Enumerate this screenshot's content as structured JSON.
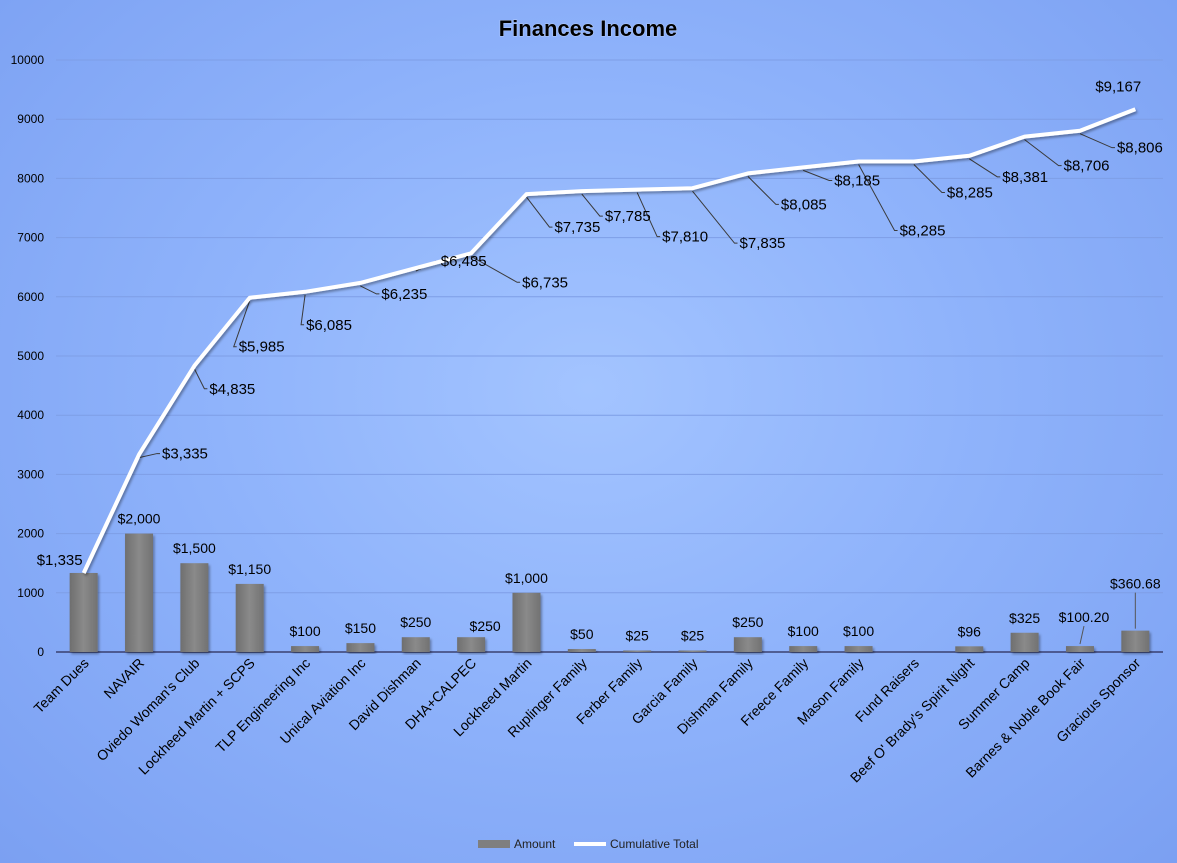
{
  "chart_data": {
    "type": "bar",
    "title": "Finances Income",
    "xlabel": "",
    "ylabel": "",
    "ylim": [
      0,
      10000
    ],
    "yticks": [
      0,
      1000,
      2000,
      3000,
      4000,
      5000,
      6000,
      7000,
      8000,
      9000,
      10000
    ],
    "grid": true,
    "legend_position": "bottom",
    "categories": [
      "Team Dues",
      "NAVAIR",
      "Oviedo Woman's Club",
      "Lockheed Martin + SCPS",
      "TLP Engineering Inc",
      "Unical Aviation Inc",
      "David Dishman",
      "DHA+CALPEC",
      "Lockheed Martin",
      "Ruplinger Family",
      "Ferber Family",
      "Garcia Family",
      "Dishman Family",
      "Freece Family",
      "Mason Family",
      "Fund Raisers",
      "Beef O' Brady's Spirit Night",
      "Summer Camp",
      "Barnes & Noble Book Fair",
      "Gracious Sponsor"
    ],
    "series": [
      {
        "name": "Amount",
        "type": "bar",
        "color": "#7f7f7f",
        "values": [
          1335,
          2000,
          1500,
          1150,
          100,
          150,
          250,
          250,
          1000,
          50,
          25,
          25,
          250,
          100,
          100,
          null,
          96,
          325,
          100.2,
          360.68
        ],
        "labels": [
          "",
          "$2,000",
          "$1,500",
          "$1,150",
          "$100",
          "$150",
          "$250",
          "$250",
          "$1,000",
          "$50",
          "$25",
          "$25",
          "$250",
          "$100",
          "$100",
          "",
          "$96",
          "$325",
          "$100.20",
          "$360.68"
        ]
      },
      {
        "name": "Cumulative Total",
        "type": "line",
        "color": "#ffffff",
        "values": [
          1335,
          3335,
          4835,
          5985,
          6085,
          6235,
          6485,
          6735,
          7735,
          7785,
          7810,
          7835,
          8085,
          8185,
          8285,
          8285,
          8381,
          8706,
          8806,
          9167
        ],
        "labels": [
          "$1,335",
          "$3,335",
          "$4,835",
          "$5,985",
          "$6,085",
          "$6,235",
          "$6,485",
          "$6,735",
          "$7,735",
          "$7,785",
          "$7,810",
          "$7,835",
          "$8,085",
          "$8,185",
          "$8,285",
          "$8,285",
          "$8,381",
          "$8,706",
          "$8,806",
          "$9,167"
        ]
      }
    ]
  }
}
